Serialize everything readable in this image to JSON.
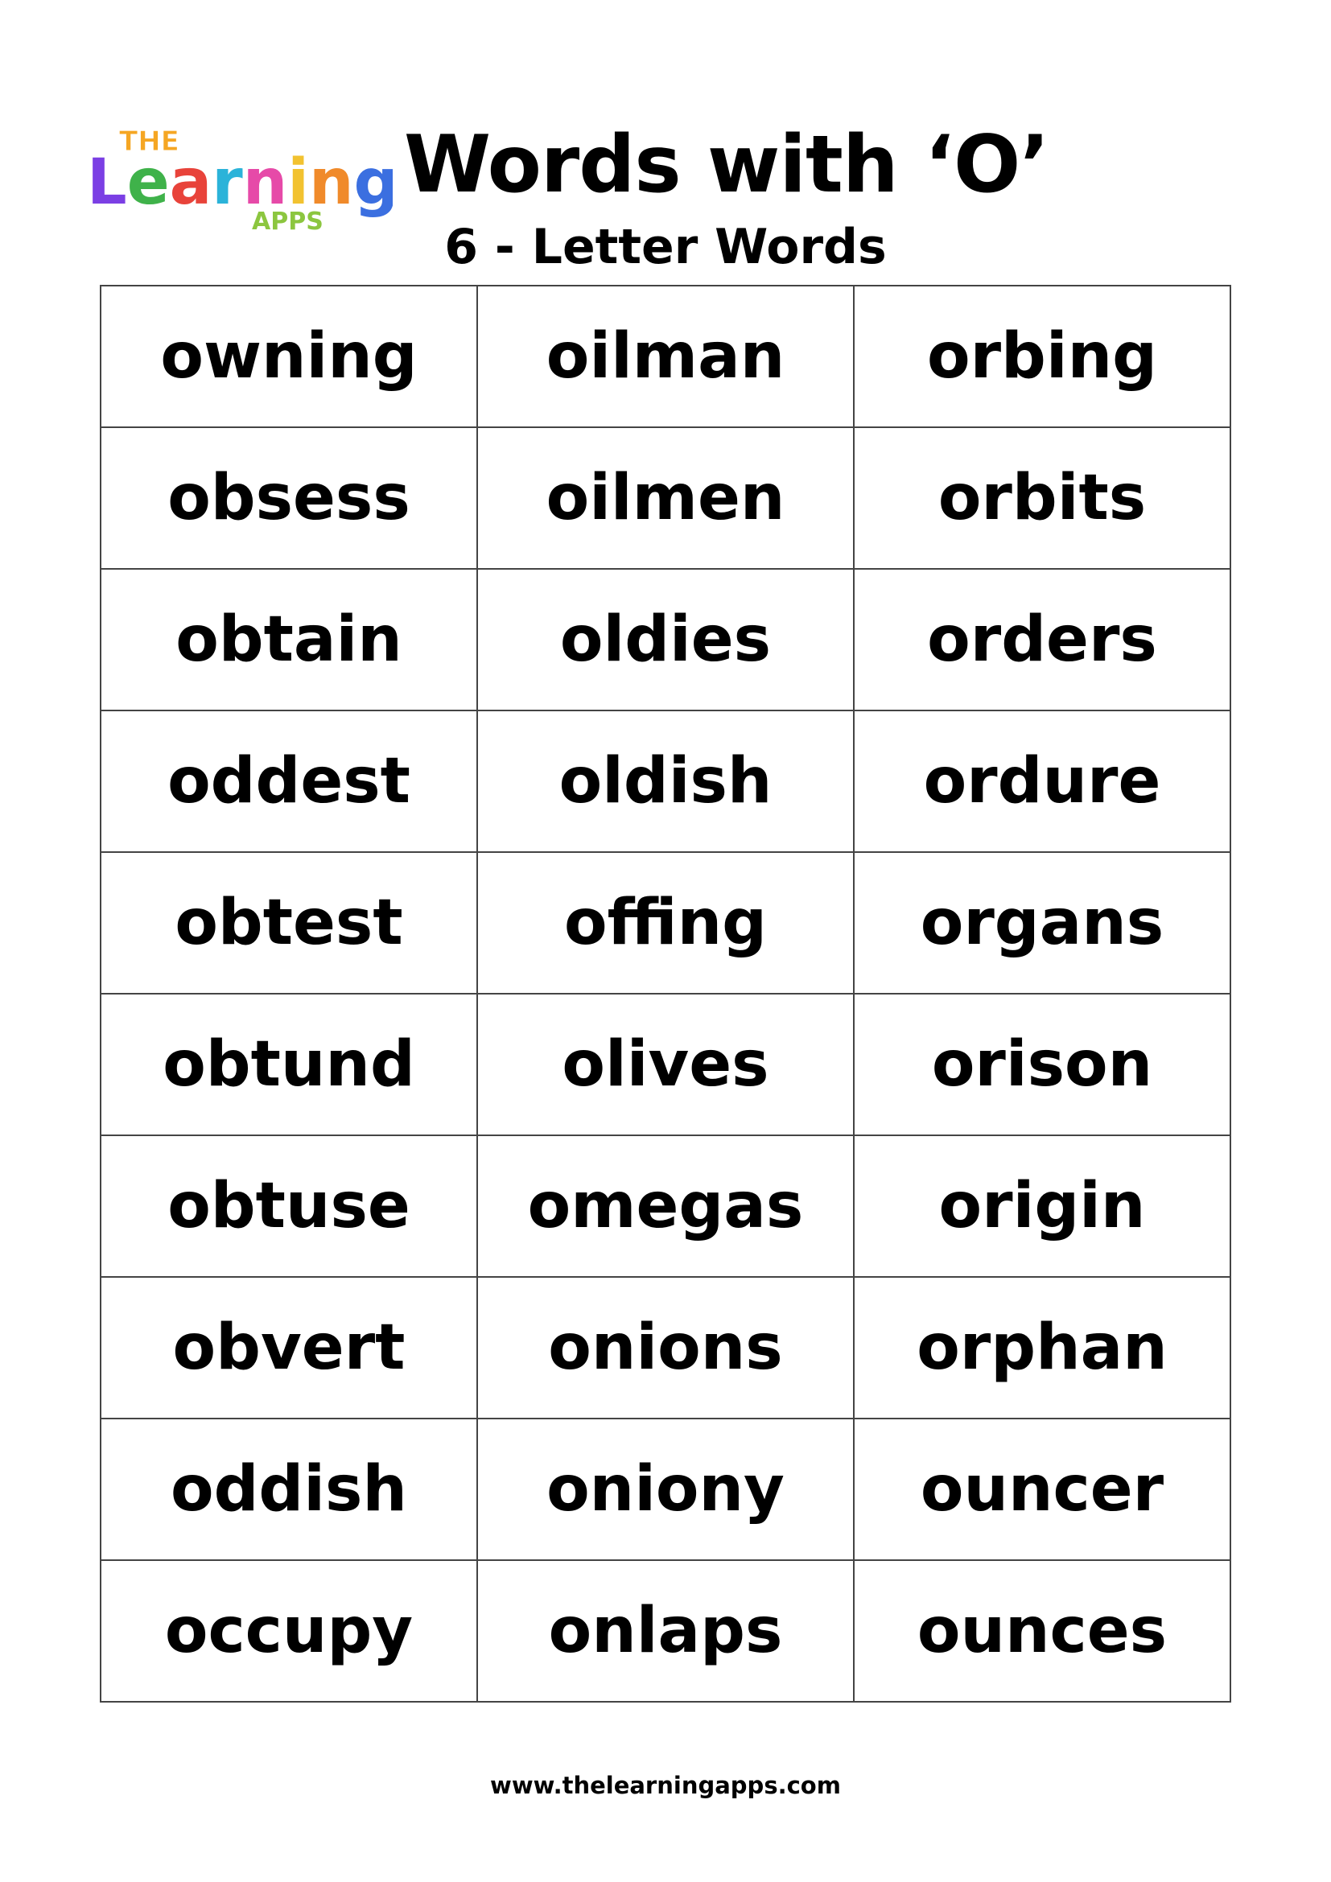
{
  "logo": {
    "text_top": "THE",
    "text_main": "Learning",
    "text_bottom": "APPS"
  },
  "header": {
    "title": "Words with ‘O’",
    "subtitle": "6 - Letter Words"
  },
  "table": {
    "rows": [
      [
        "owning",
        "oilman",
        "orbing"
      ],
      [
        "obsess",
        "oilmen",
        "orbits"
      ],
      [
        "obtain",
        "oldies",
        "orders"
      ],
      [
        "oddest",
        "oldish",
        "ordure"
      ],
      [
        "obtest",
        "offing",
        "organs"
      ],
      [
        "obtund",
        "olives",
        "orison"
      ],
      [
        "obtuse",
        "omegas",
        "origin"
      ],
      [
        "obvert",
        "onions",
        "orphan"
      ],
      [
        "oddish",
        "oniony",
        "ouncer"
      ],
      [
        "occupy",
        "onlaps",
        "ounces"
      ]
    ]
  },
  "footer": {
    "url": "www.thelearningapps.com"
  }
}
